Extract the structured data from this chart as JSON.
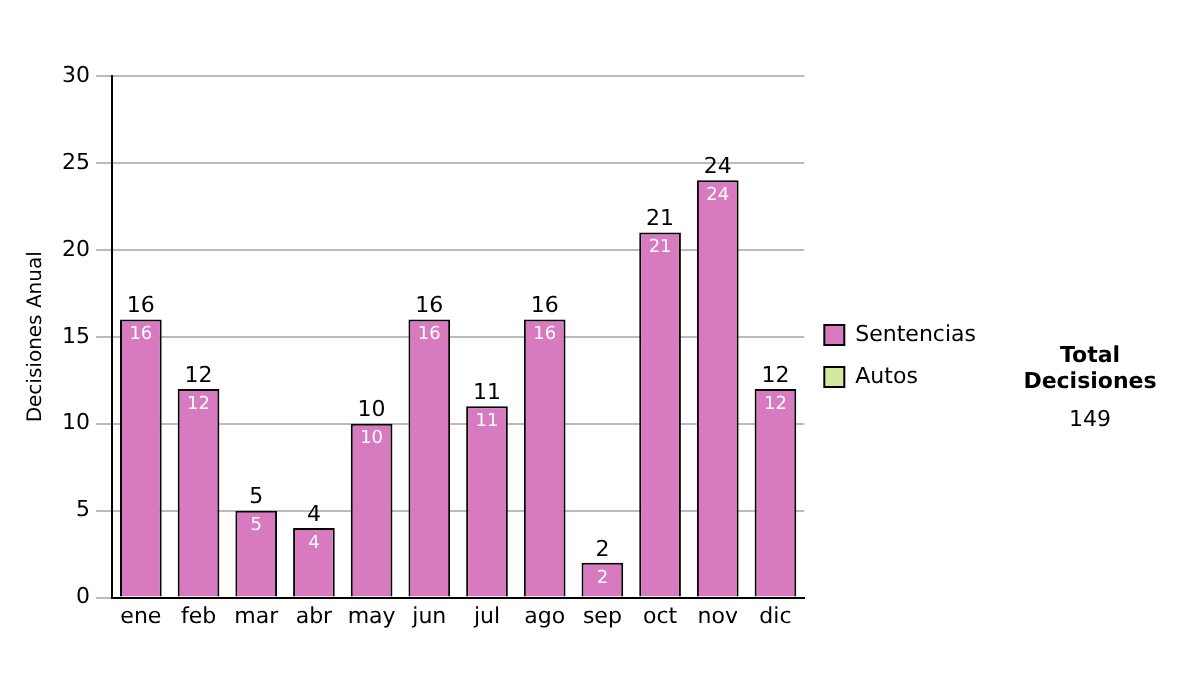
{
  "chart_data": {
    "type": "bar",
    "ylabel": "Decisiones Anual",
    "categories": [
      "ene",
      "feb",
      "mar",
      "abr",
      "may",
      "jun",
      "jul",
      "ago",
      "sep",
      "oct",
      "nov",
      "dic"
    ],
    "series": [
      {
        "name": "Sentencias",
        "color": "#d87ac0",
        "values": [
          16,
          12,
          5,
          4,
          10,
          16,
          11,
          16,
          2,
          21,
          24,
          12
        ],
        "value_labels": [
          "16",
          "12",
          "5",
          "4",
          "10",
          "16",
          "11",
          "16",
          "2",
          "21",
          "24",
          "12"
        ]
      },
      {
        "name": "Autos",
        "color": "#d4e8a0",
        "values": [
          0,
          0,
          0,
          0,
          0,
          0,
          0,
          0,
          0,
          0,
          0,
          0
        ],
        "value_labels": [
          null,
          null,
          null,
          null,
          null,
          null,
          null,
          null,
          null,
          null,
          null,
          null
        ]
      }
    ],
    "stacked": true,
    "ylim": [
      0,
      30
    ],
    "yticks": [
      0,
      5,
      10,
      15,
      20,
      25,
      30
    ],
    "grid": "y",
    "legend": "right",
    "totals": [
      "16",
      "12",
      "5",
      "4",
      "10",
      "16",
      "11",
      "16",
      "2",
      "21",
      "24",
      "12"
    ],
    "annotations": [
      "Total Decisiones",
      "149"
    ]
  }
}
